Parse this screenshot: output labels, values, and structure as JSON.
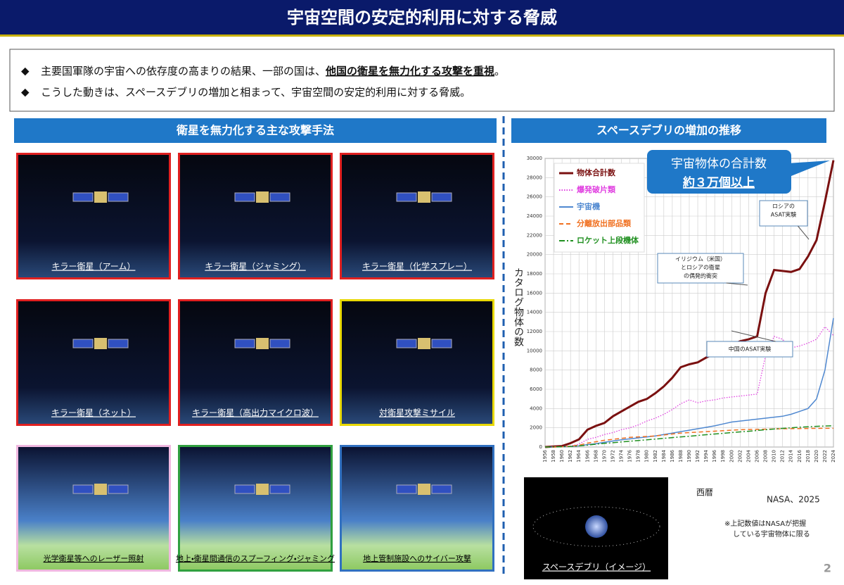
{
  "header": {
    "title": "宇宙空間の安定的利用に対する脅威"
  },
  "bullets": [
    {
      "marker": "◆",
      "parts": [
        "主要国軍隊の宇宙への依存度の高まりの結果、一部の国は、",
        "他国の衛星を無力化する攻撃を重視",
        "。"
      ]
    },
    {
      "marker": "◆",
      "parts": [
        "こうした動きは、スペースデブリの増加と相まって、宇宙空間の安定的利用に対する脅威。"
      ]
    }
  ],
  "left_panel": {
    "title": "衛星を無力化する主な攻撃手法",
    "tiles": [
      {
        "label": "キラー衛星（アーム）",
        "border": "#e02020"
      },
      {
        "label": "キラー衛星（ジャミング）",
        "border": "#e02020"
      },
      {
        "label": "キラー衛星（化学スプレー）",
        "border": "#e02020"
      },
      {
        "label": "キラー衛星（ネット）",
        "border": "#e02020"
      },
      {
        "label": "キラー衛星（高出力マイクロ波）",
        "border": "#e02020"
      },
      {
        "label": "対衛星攻撃ミサイル",
        "border": "#e8d800"
      },
      {
        "label": "光学衛星等へのレーザー照射",
        "border": "#f0b8e0"
      },
      {
        "label": "地上・衛星間通信のスプーフィング・ジャミング",
        "border": "#30a040"
      },
      {
        "label": "地上管制施設へのサイバー攻撃",
        "border": "#3070c0"
      }
    ]
  },
  "right_panel": {
    "title": "スペースデブリの増加の推移",
    "image_caption": "スペースデブリ（イメージ）",
    "source": "NASA、2025",
    "note": [
      "※上記数値はNASAが把握",
      "している宇宙物体に限る"
    ]
  },
  "chart_data": {
    "type": "line",
    "y_label": "カタログ物体の数",
    "x_label": "西暦",
    "callout": [
      "宇宙物体の合計数",
      "約３万個以上"
    ],
    "annotations": [
      {
        "lines": [
          "ロシアの",
          "ASAT実験"
        ]
      },
      {
        "lines": [
          "イリジウム（米国）",
          "とロシアの衛星",
          "の偶発的衝突"
        ]
      },
      {
        "lines": [
          "中国のASAT実験"
        ]
      }
    ],
    "grid": true,
    "xlim": [
      1956,
      2024
    ],
    "ylim": [
      0,
      30000
    ],
    "xticks": [
      1956,
      1958,
      1960,
      1962,
      1964,
      1966,
      1968,
      1970,
      1972,
      1974,
      1976,
      1978,
      1980,
      1982,
      1984,
      1986,
      1988,
      1990,
      1992,
      1994,
      1996,
      1998,
      2000,
      2002,
      2004,
      2006,
      2008,
      2010,
      2012,
      2014,
      2016,
      2018,
      2020,
      2022,
      2024
    ],
    "yticks": [
      0,
      2000,
      4000,
      6000,
      8000,
      10000,
      12000,
      14000,
      16000,
      18000,
      20000,
      22000,
      24000,
      26000,
      28000,
      30000
    ],
    "x": [
      1956,
      1958,
      1960,
      1962,
      1964,
      1966,
      1968,
      1970,
      1972,
      1974,
      1976,
      1978,
      1980,
      1982,
      1984,
      1986,
      1988,
      1990,
      1992,
      1994,
      1996,
      1998,
      2000,
      2002,
      2004,
      2006,
      2008,
      2010,
      2012,
      2014,
      2016,
      2018,
      2020,
      2022,
      2024
    ],
    "series": [
      {
        "name": "物体合計数",
        "color": "#7a1010",
        "dash": "solid",
        "width": 3,
        "values": [
          0,
          50,
          100,
          400,
          800,
          1800,
          2200,
          2500,
          3200,
          3700,
          4200,
          4700,
          5000,
          5600,
          6300,
          7200,
          8300,
          8600,
          8800,
          9300,
          9700,
          10300,
          10600,
          11000,
          11200,
          11500,
          16000,
          18400,
          18300,
          18200,
          18500,
          19800,
          21500,
          25500,
          29800
        ]
      },
      {
        "name": "爆発破片類",
        "color": "#e040e0",
        "dash": "dotted",
        "width": 1.3,
        "values": [
          0,
          0,
          0,
          100,
          300,
          800,
          1000,
          1300,
          1500,
          1800,
          2000,
          2300,
          2700,
          3000,
          3400,
          3900,
          4500,
          4900,
          4600,
          4800,
          4900,
          5100,
          5200,
          5300,
          5400,
          5500,
          9500,
          11500,
          11200,
          10300,
          10500,
          10800,
          11200,
          12500,
          11600
        ]
      },
      {
        "name": "宇宙機",
        "color": "#4f88d0",
        "dash": "solid",
        "width": 1.5,
        "values": [
          0,
          5,
          20,
          60,
          120,
          250,
          350,
          500,
          620,
          750,
          850,
          950,
          1050,
          1150,
          1300,
          1450,
          1600,
          1750,
          1900,
          2050,
          2200,
          2400,
          2600,
          2700,
          2800,
          2900,
          3000,
          3100,
          3200,
          3400,
          3700,
          4000,
          5000,
          8000,
          13400
        ]
      },
      {
        "name": "分離放出部品類",
        "color": "#f07020",
        "dash": "dashed",
        "width": 1.5,
        "values": [
          0,
          0,
          20,
          80,
          200,
          400,
          550,
          700,
          800,
          900,
          1000,
          1050,
          1100,
          1150,
          1250,
          1350,
          1450,
          1500,
          1550,
          1600,
          1650,
          1700,
          1750,
          1800,
          1820,
          1840,
          1860,
          1880,
          1900,
          1910,
          1920,
          1930,
          1940,
          1950,
          1950
        ]
      },
      {
        "name": "ロケット上段機体",
        "color": "#209020",
        "dash": "dashdot",
        "width": 1.5,
        "values": [
          0,
          10,
          30,
          60,
          120,
          200,
          300,
          380,
          450,
          530,
          600,
          680,
          750,
          830,
          900,
          980,
          1050,
          1120,
          1200,
          1280,
          1350,
          1430,
          1500,
          1570,
          1640,
          1720,
          1800,
          1870,
          1940,
          2000,
          2060,
          2100,
          2150,
          2180,
          2220
        ]
      }
    ]
  },
  "page_number": "2"
}
